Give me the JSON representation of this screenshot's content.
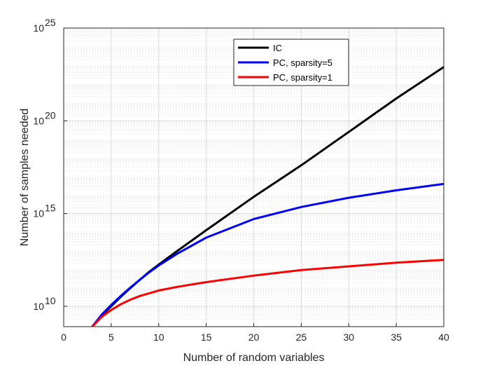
{
  "chart_data": {
    "type": "line",
    "title": "",
    "xlabel": "Number of random variables",
    "ylabel": "Number of samples needed",
    "xlim": [
      0,
      40
    ],
    "ylim_log10": [
      8.9,
      25
    ],
    "yscale": "log",
    "grid": true,
    "minor_grid": true,
    "legend_position": "top-right",
    "x_ticks": [
      "0",
      "5",
      "10",
      "15",
      "20",
      "25",
      "30",
      "35",
      "40"
    ],
    "x_tick_values": [
      0,
      5,
      10,
      15,
      20,
      25,
      30,
      35,
      40
    ],
    "y_ticks": [
      {
        "base": "10",
        "exp": "10",
        "value_log10": 10
      },
      {
        "base": "10",
        "exp": "15",
        "value_log10": 15
      },
      {
        "base": "10",
        "exp": "20",
        "value_log10": 20
      },
      {
        "base": "10",
        "exp": "25",
        "value_log10": 25
      }
    ],
    "x": [
      3,
      4,
      5,
      6,
      7,
      8,
      9,
      10,
      12,
      15,
      20,
      25,
      30,
      35,
      40
    ],
    "series": [
      {
        "name": "IC",
        "color": "#000000",
        "log10_values": [
          8.9,
          9.5,
          10.0,
          10.5,
          10.97,
          11.42,
          11.86,
          12.25,
          13.0,
          14.1,
          15.9,
          17.6,
          19.4,
          21.2,
          22.9
        ]
      },
      {
        "name": "PC, sparsity=5",
        "color": "#0000ff",
        "log10_values": [
          8.9,
          9.55,
          10.07,
          10.55,
          11.0,
          11.42,
          11.83,
          12.2,
          12.85,
          13.7,
          14.7,
          15.35,
          15.85,
          16.25,
          16.6
        ]
      },
      {
        "name": "PC, sparsity=1",
        "color": "#ff0000",
        "log10_values": [
          8.9,
          9.43,
          9.8,
          10.1,
          10.35,
          10.55,
          10.7,
          10.85,
          11.05,
          11.3,
          11.65,
          11.95,
          12.15,
          12.35,
          12.5
        ]
      }
    ]
  }
}
